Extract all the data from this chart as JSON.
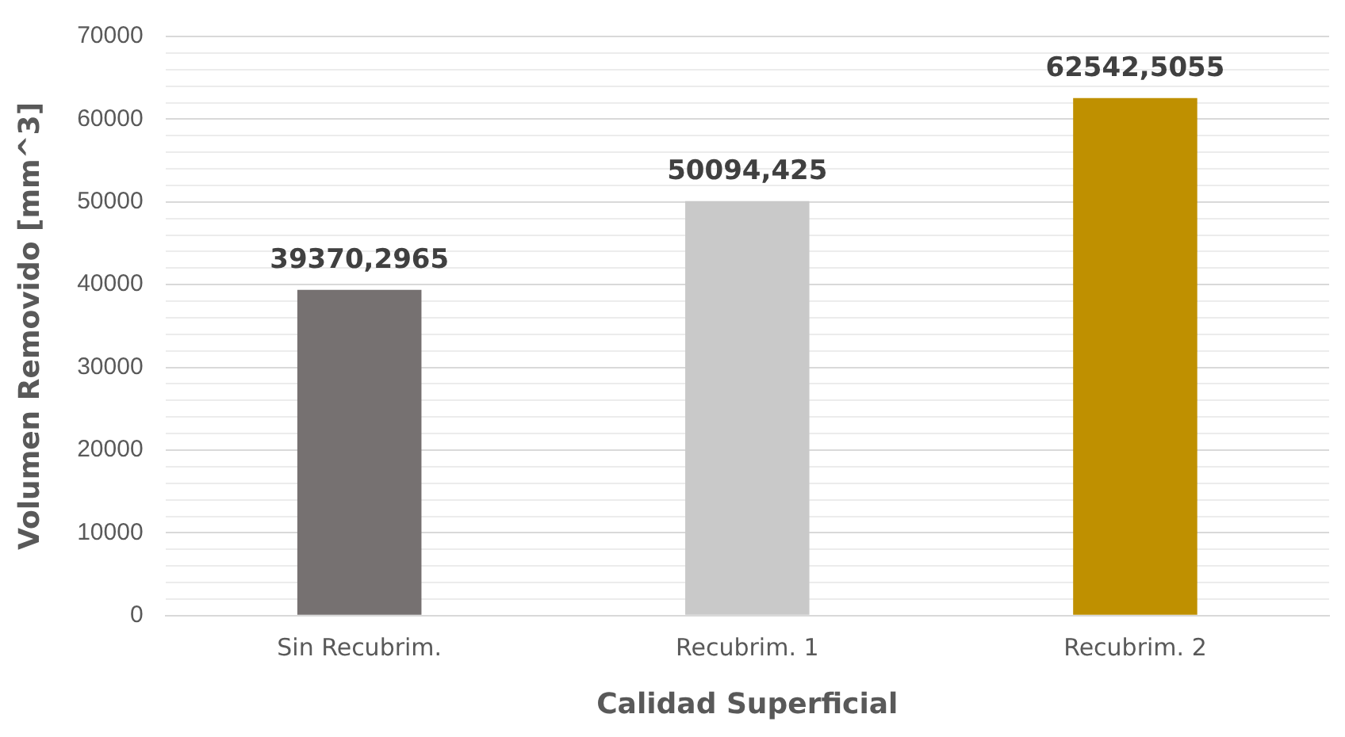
{
  "chart_data": {
    "type": "bar",
    "xlabel": "Calidad Superficial",
    "ylabel": "Volumen Removido [mm^3]",
    "categories": [
      "Sin Recubrim.",
      "Recubrim. 1",
      "Recubrim. 2"
    ],
    "values": [
      39370.2965,
      50094.425,
      62542.5055
    ],
    "colors": [
      "#767171",
      "#c9c9c9",
      "#bf9000"
    ],
    "value_labels": [
      "39370,2965",
      "50094,425",
      "62542,5055"
    ],
    "ylim": [
      0,
      70000
    ],
    "yticks": [
      0,
      {
        "value": 2000,
        "label": null
      },
      {
        "value": 4000,
        "label": null
      },
      {
        "value": 6000,
        "label": null
      },
      {
        "value": 8000,
        "label": null
      },
      10000,
      {
        "value": 12000,
        "label": null
      },
      {
        "value": 14000,
        "label": null
      },
      {
        "value": 16000,
        "label": null
      },
      {
        "value": 18000,
        "label": null
      },
      20000,
      {
        "value": 22000,
        "label": null
      },
      {
        "value": 24000,
        "label": null
      },
      {
        "value": 26000,
        "label": null
      },
      {
        "value": 28000,
        "label": null
      },
      30000,
      {
        "value": 32000,
        "label": null
      },
      {
        "value": 34000,
        "label": null
      },
      {
        "value": 36000,
        "label": null
      },
      {
        "value": 38000,
        "label": null
      },
      40000,
      {
        "value": 42000,
        "label": null
      },
      {
        "value": 44000,
        "label": null
      },
      {
        "value": 46000,
        "label": null
      },
      {
        "value": 48000,
        "label": null
      },
      50000,
      {
        "value": 52000,
        "label": null
      },
      {
        "value": 54000,
        "label": null
      },
      {
        "value": 56000,
        "label": null
      },
      {
        "value": 58000,
        "label": null
      },
      60000,
      {
        "value": 62000,
        "label": null
      },
      {
        "value": 64000,
        "label": null
      },
      {
        "value": 66000,
        "label": null
      },
      {
        "value": 68000,
        "label": null
      },
      70000
    ],
    "grid": "y"
  }
}
